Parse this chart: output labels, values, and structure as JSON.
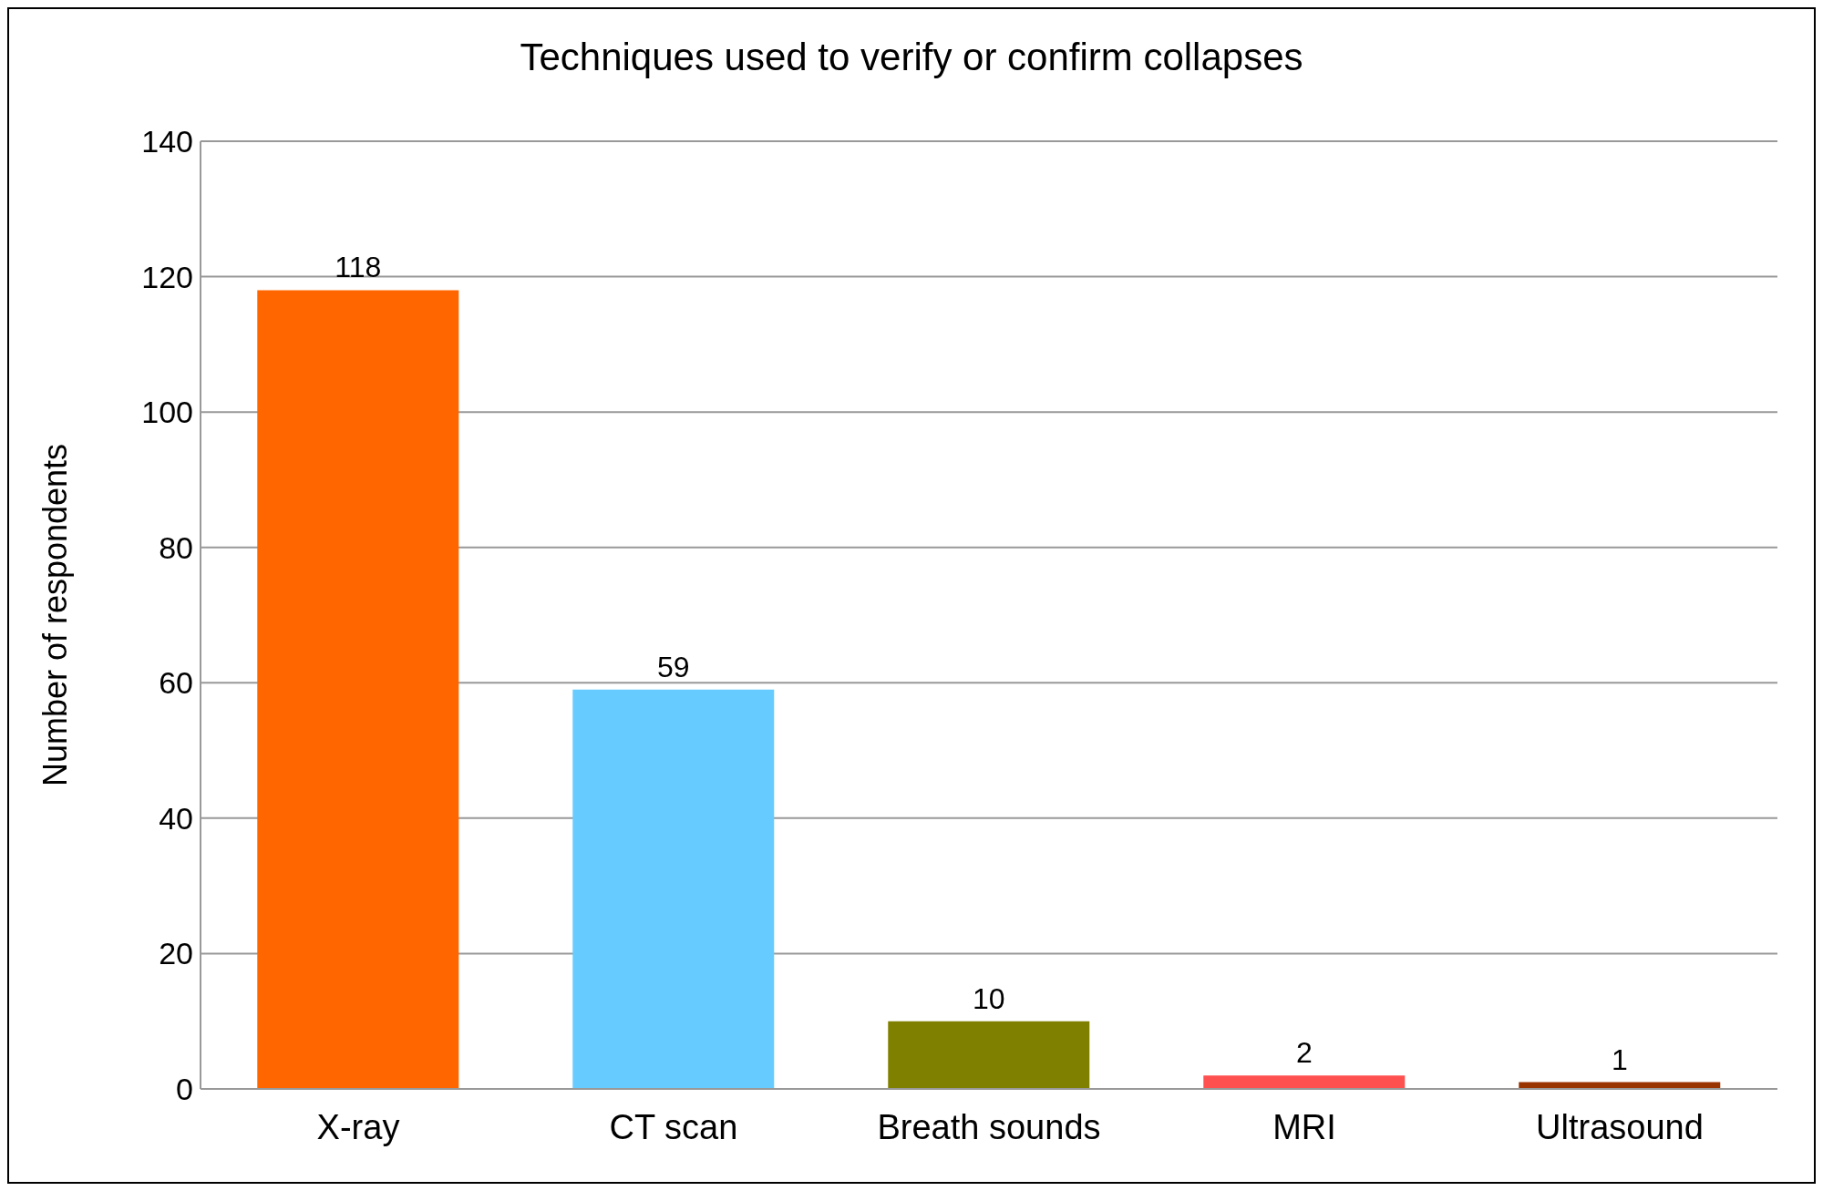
{
  "chart_data": {
    "type": "bar",
    "title": "Techniques used to verify or confirm collapses",
    "ylabel": "Number of respondents",
    "categories": [
      "X-ray",
      "CT scan",
      "Breath sounds",
      "MRI",
      "Ultrasound"
    ],
    "values": [
      118,
      59,
      10,
      2,
      1
    ],
    "colors": [
      "#ff6600",
      "#66ccff",
      "#808000",
      "#ff5050",
      "#993300"
    ],
    "ylim": [
      0,
      140
    ],
    "yticks": [
      0,
      20,
      40,
      60,
      80,
      100,
      120,
      140
    ],
    "grid": "y",
    "data_labels": true,
    "legend": false
  }
}
